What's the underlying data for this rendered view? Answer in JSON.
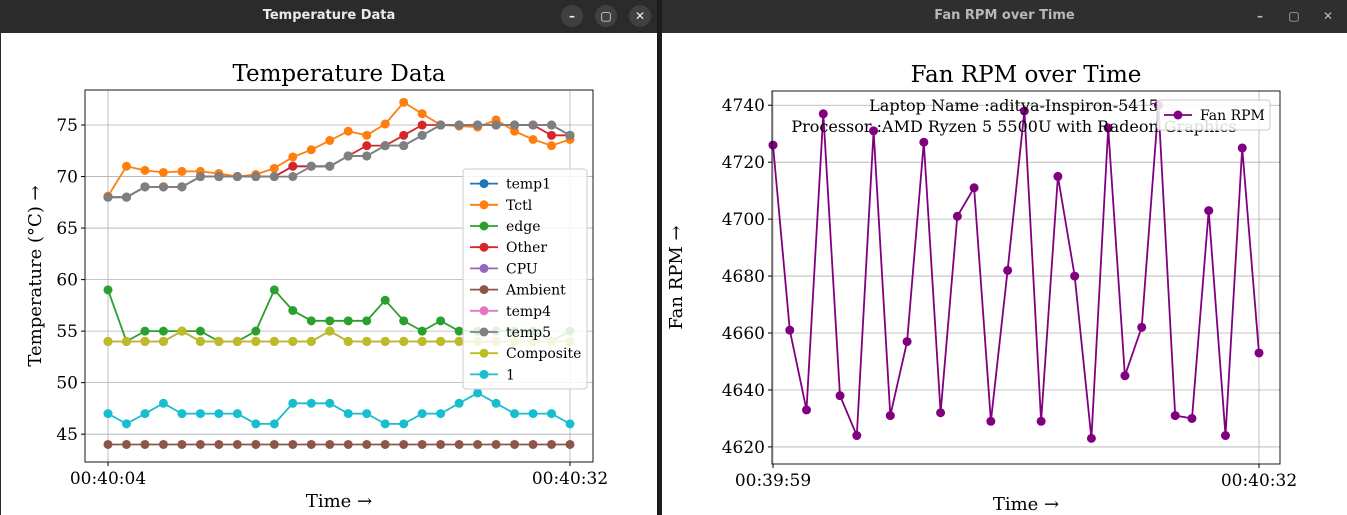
{
  "windows": {
    "left": {
      "title": "Temperature Data"
    },
    "right": {
      "title": "Fan RPM over Time"
    }
  },
  "window_controls": {
    "minimize": "–",
    "maximize": "▢",
    "close": "✕"
  },
  "chart_data": [
    {
      "type": "line",
      "title": "Temperature Data",
      "xlabel": "Time →",
      "ylabel": "Temperature (°C) →",
      "x_tick_labels": [
        "00:40:04",
        "00:40:32"
      ],
      "y_ticks": [
        45,
        50,
        55,
        60,
        65,
        70,
        75
      ],
      "ylim": [
        42.3,
        78.4
      ],
      "grid": true,
      "legend_position": "center-right",
      "series": [
        {
          "name": "temp1",
          "color": "#1f77b4",
          "values": [
            68,
            68,
            69,
            69,
            69,
            70,
            70,
            70,
            70,
            70,
            71,
            71,
            71,
            72,
            72,
            73,
            73,
            74,
            75,
            75,
            75,
            75,
            75,
            75,
            75,
            74
          ]
        },
        {
          "name": "Tctl",
          "color": "#ff7f0e",
          "values": [
            68.1,
            71,
            70.6,
            70.4,
            70.5,
            70.5,
            70.3,
            70,
            70.2,
            70.8,
            71.9,
            72.6,
            73.5,
            74.4,
            74,
            75.1,
            77.2,
            76.1,
            75,
            74.9,
            74.8,
            75.5,
            74.4,
            73.6,
            73,
            73.6
          ]
        },
        {
          "name": "edge",
          "color": "#2ca02c",
          "values": [
            59,
            54,
            55,
            55,
            55,
            55,
            54,
            54,
            55,
            59,
            57,
            56,
            56,
            56,
            56,
            58,
            56,
            55,
            56,
            55,
            55,
            55,
            55,
            55,
            54,
            55
          ]
        },
        {
          "name": "Other",
          "color": "#d62728",
          "values": [
            68,
            68,
            69,
            69,
            69,
            70,
            70,
            70,
            70,
            70,
            71,
            71,
            71,
            72,
            73,
            73,
            74,
            75,
            75,
            75,
            75,
            75,
            75,
            75,
            74,
            74
          ]
        },
        {
          "name": "CPU",
          "color": "#9467bd",
          "values": [
            54,
            54,
            54,
            54,
            55,
            54,
            54,
            54,
            54,
            54,
            54,
            54,
            55,
            54,
            54,
            54,
            54,
            54,
            54,
            54,
            54,
            54,
            54,
            54,
            54,
            54
          ]
        },
        {
          "name": "Ambient",
          "color": "#8c564b",
          "values": [
            44,
            44,
            44,
            44,
            44,
            44,
            44,
            44,
            44,
            44,
            44,
            44,
            44,
            44,
            44,
            44,
            44,
            44,
            44,
            44,
            44,
            44,
            44,
            44,
            44,
            44
          ]
        },
        {
          "name": "temp4",
          "color": "#e377c2",
          "values": [
            54,
            54,
            54,
            54,
            55,
            54,
            54,
            54,
            54,
            54,
            54,
            54,
            55,
            54,
            54,
            54,
            54,
            54,
            54,
            54,
            54,
            54,
            54,
            54,
            54,
            54
          ]
        },
        {
          "name": "temp5",
          "color": "#7f7f7f",
          "values": [
            68,
            68,
            69,
            69,
            69,
            70,
            70,
            70,
            70,
            70,
            70,
            71,
            71,
            72,
            72,
            73,
            73,
            74,
            75,
            75,
            75,
            75,
            75,
            75,
            75,
            74
          ]
        },
        {
          "name": "Composite",
          "color": "#bcbd22",
          "values": [
            54,
            54,
            54,
            54,
            55,
            54,
            54,
            54,
            54,
            54,
            54,
            54,
            55,
            54,
            54,
            54,
            54,
            54,
            54,
            54,
            54,
            54,
            54,
            54,
            54,
            54
          ]
        },
        {
          "name": "1",
          "color": "#17becf",
          "values": [
            47,
            46,
            47,
            48,
            47,
            47,
            47,
            47,
            46,
            46,
            48,
            48,
            48,
            47,
            47,
            46,
            46,
            47,
            47,
            48,
            49,
            48,
            47,
            47,
            47,
            46
          ]
        }
      ]
    },
    {
      "type": "line",
      "title": "Fan RPM over Time",
      "xlabel": "Time →",
      "ylabel": "Fan RPM →",
      "x_tick_labels": [
        "00:39:59",
        "00:40:32"
      ],
      "y_ticks": [
        4620,
        4640,
        4660,
        4680,
        4700,
        4720,
        4740
      ],
      "ylim": [
        4614,
        4745
      ],
      "grid": true,
      "legend_position": "top-right",
      "annotations": [
        "Laptop Name :aditya-Inspiron-5415",
        "Processor :AMD Ryzen 5 5500U with Radeon Graphics"
      ],
      "series": [
        {
          "name": "Fan RPM",
          "color": "#800080",
          "values": [
            4726,
            4661,
            4633,
            4737,
            4638,
            4624,
            4731,
            4631,
            4657,
            4727,
            4632,
            4701,
            4711,
            4629,
            4682,
            4738,
            4629,
            4715,
            4680,
            4623,
            4732,
            4645,
            4662,
            4740,
            4631,
            4630,
            4703,
            4624,
            4725,
            4653
          ]
        }
      ]
    }
  ]
}
